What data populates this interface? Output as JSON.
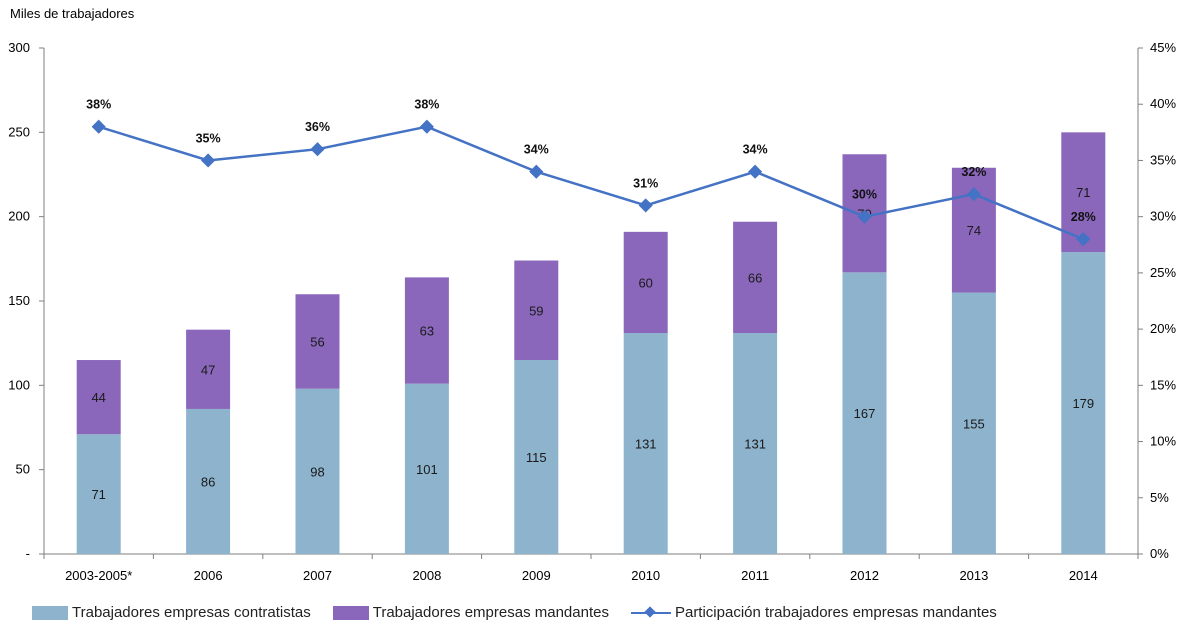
{
  "colors": {
    "contratistas": "#8db3cd",
    "mandantes": "#8a67bb",
    "participacion": "#4472c4",
    "axis": "#7f7f7f"
  },
  "chart_data": {
    "type": "bar",
    "stacked": true,
    "ylabel": "Miles de trabajadores",
    "ylim": [
      0,
      300
    ],
    "y_ticks": [
      "-",
      "50",
      "100",
      "150",
      "200",
      "250",
      "300"
    ],
    "y2lim": [
      0,
      45
    ],
    "y2_ticks": [
      "0%",
      "5%",
      "10%",
      "15%",
      "20%",
      "25%",
      "30%",
      "35%",
      "40%",
      "45%"
    ],
    "categories": [
      "2003-2005*",
      "2006",
      "2007",
      "2008",
      "2009",
      "2010",
      "2011",
      "2012",
      "2013",
      "2014"
    ],
    "series": [
      {
        "name": "Trabajadores empresas contratistas",
        "type": "bar",
        "values": [
          71,
          86,
          98,
          101,
          115,
          131,
          131,
          167,
          155,
          179
        ]
      },
      {
        "name": "Trabajadores empresas mandantes",
        "type": "bar",
        "values": [
          44,
          47,
          56,
          63,
          59,
          60,
          66,
          70,
          74,
          71
        ]
      },
      {
        "name": "Participación trabajadores empresas mandantes",
        "type": "line",
        "axis": "secondary",
        "values": [
          38,
          35,
          36,
          38,
          34,
          31,
          34,
          30,
          32,
          28
        ],
        "labels": [
          "38%",
          "35%",
          "36%",
          "38%",
          "34%",
          "31%",
          "34%",
          "30%",
          "32%",
          "28%"
        ]
      }
    ],
    "grid": false,
    "legend": "bottom"
  },
  "legend": {
    "contratistas": "Trabajadores empresas contratistas",
    "mandantes": "Trabajadores empresas mandantes",
    "participacion": "Participación trabajadores empresas mandantes"
  }
}
